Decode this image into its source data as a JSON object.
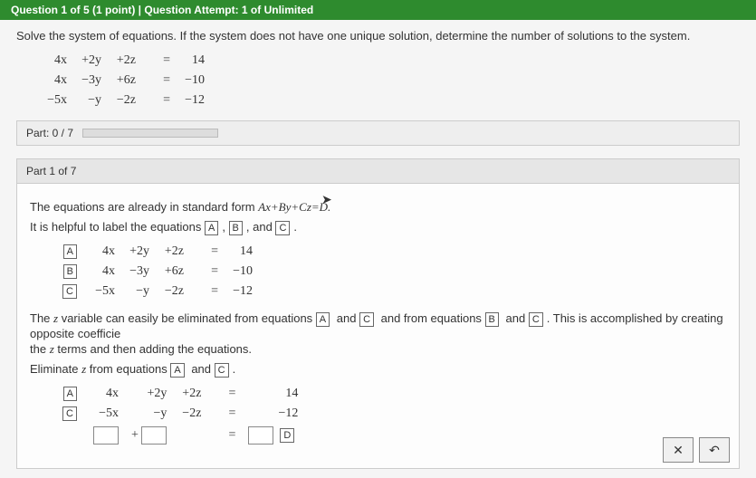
{
  "header": {
    "text": "Question 1 of 5 (1 point)  |  Question Attempt: 1 of Unlimited"
  },
  "instruction": "Solve the system of equations. If the system does not have one unique solution, determine the number of solutions to the system.",
  "topEq": {
    "rows": [
      {
        "c1": "4x",
        "c2": "+2y",
        "c3": "+2z",
        "eq": "=",
        "rhs": "14"
      },
      {
        "c1": "4x",
        "c2": "−3y",
        "c3": "+6z",
        "eq": "=",
        "rhs": "−10"
      },
      {
        "c1": "−5x",
        "c2": "−y",
        "c3": "−2z",
        "eq": "=",
        "rhs": "−12"
      }
    ]
  },
  "partLabel": "Part: 0 / 7",
  "subpartTitle": "Part 1 of 7",
  "body": {
    "line1a": "The equations are already in standard form ",
    "line1b": "Ax+By+Cz=D.",
    "line2a": "It is helpful to label the equations ",
    "labA": "A",
    "labB": "B",
    "labC": "C",
    "labD": "D",
    "comma": ", ",
    "and": " and ",
    "period": ".",
    "labeledEq": {
      "rows": [
        {
          "lab": "A",
          "c1": "4x",
          "c2": "+2y",
          "c3": "+2z",
          "eq": "=",
          "rhs": "14"
        },
        {
          "lab": "B",
          "c1": "4x",
          "c2": "−3y",
          "c3": "+6z",
          "eq": "=",
          "rhs": "−10"
        },
        {
          "lab": "C",
          "c1": "−5x",
          "c2": "−y",
          "c3": "−2z",
          "eq": "=",
          "rhs": "−12"
        }
      ]
    },
    "line3a": "The ",
    "line3z": "z",
    "line3b": " variable can easily be eliminated from equations ",
    "line3c": " and from equations ",
    "line3d": ". This is accomplished by creating opposite coefficie",
    "line3e": " terms and then adding the equations.",
    "line4a": "Eliminate ",
    "line4b": " from equations ",
    "elimEq": {
      "rows": [
        {
          "lab": "A",
          "c1": "4x",
          "c2": "+2y",
          "c3": "+2z",
          "eq": "=",
          "rhs": "14"
        },
        {
          "lab": "C",
          "c1": "−5x",
          "c2": "−y",
          "c3": "−2z",
          "eq": "=",
          "rhs": "−12"
        }
      ]
    },
    "plus": "+",
    "equals": "="
  },
  "buttons": {
    "close": "✕",
    "undo": "↶"
  },
  "colors": {
    "headerBg": "#2e8b2e",
    "headerText": "#ffffff"
  }
}
